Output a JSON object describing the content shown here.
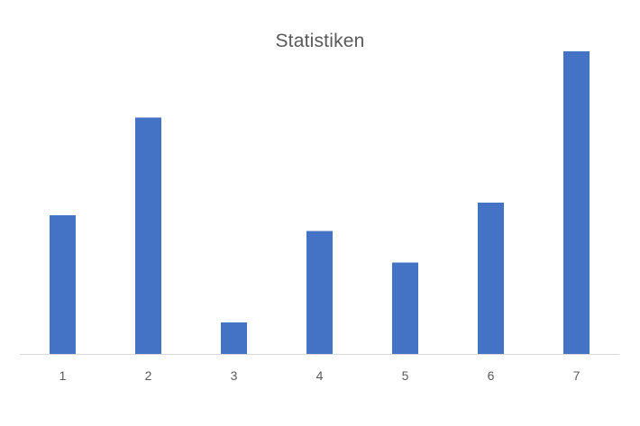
{
  "chart_data": {
    "type": "bar",
    "title": "Statistiken",
    "categories": [
      "1",
      "2",
      "3",
      "4",
      "5",
      "6",
      "7"
    ],
    "series": [
      {
        "values": [
          44,
          75,
          10,
          39,
          29,
          48,
          96
        ],
        "color": "#4472C4"
      }
    ],
    "ylim": [
      0,
      110
    ],
    "grid": false,
    "legend": "none",
    "axis_color": "#D9D9D9"
  }
}
